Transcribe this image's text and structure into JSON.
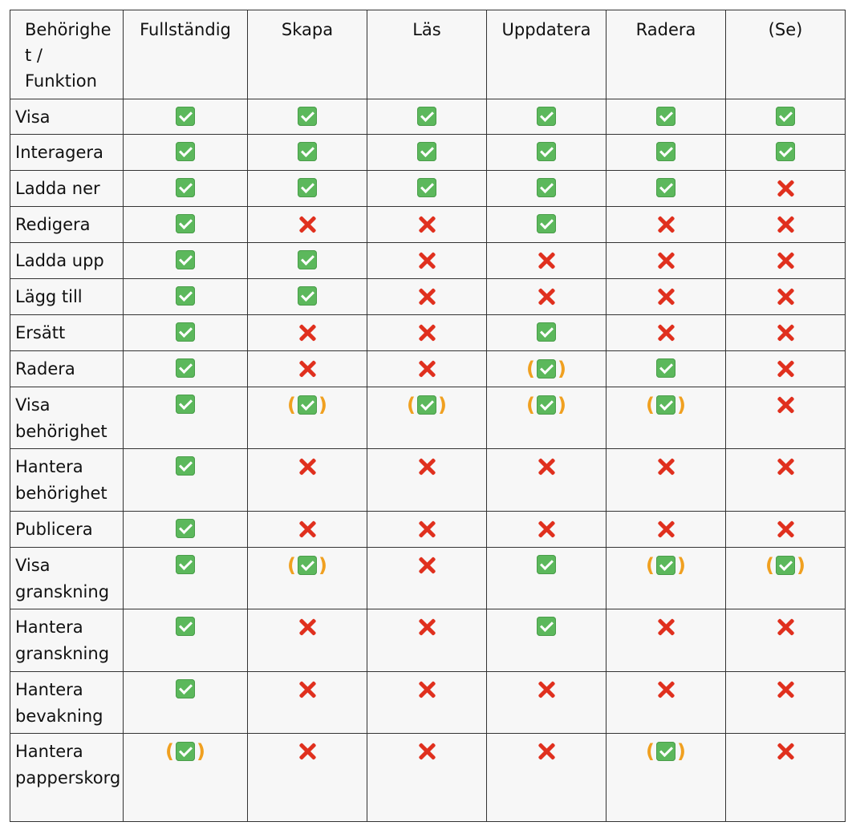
{
  "header": {
    "first_line1": "Behörighe",
    "first_line2": "t /",
    "first_line3": "Funktion",
    "columns": [
      "Fullständig",
      "Skapa",
      "Läs",
      "Uppdatera",
      "Radera",
      "(Se)"
    ]
  },
  "legend": {
    "check": "check-icon",
    "cross": "cross-icon",
    "partial": "partial-check-icon"
  },
  "colors": {
    "check": "#5cb85c",
    "cross": "#e0301e",
    "paren": "#f0a020"
  },
  "rows": [
    {
      "label": "Visa",
      "height": 44,
      "cells": [
        "check",
        "check",
        "check",
        "check",
        "check",
        "check"
      ]
    },
    {
      "label": "Interagera",
      "height": 45,
      "cells": [
        "check",
        "check",
        "check",
        "check",
        "check",
        "check"
      ]
    },
    {
      "label": "Ladda ner",
      "height": 45,
      "cells": [
        "check",
        "check",
        "check",
        "check",
        "check",
        "cross"
      ]
    },
    {
      "label": "Redigera",
      "height": 45,
      "cells": [
        "check",
        "cross",
        "cross",
        "check",
        "cross",
        "cross"
      ]
    },
    {
      "label": "Ladda upp",
      "height": 45,
      "cells": [
        "check",
        "check",
        "cross",
        "cross",
        "cross",
        "cross"
      ]
    },
    {
      "label": "Lägg till",
      "height": 45,
      "cells": [
        "check",
        "check",
        "cross",
        "cross",
        "cross",
        "cross"
      ]
    },
    {
      "label": "Ersätt",
      "height": 45,
      "cells": [
        "check",
        "cross",
        "cross",
        "check",
        "cross",
        "cross"
      ]
    },
    {
      "label": "Radera",
      "height": 45,
      "cells": [
        "check",
        "cross",
        "cross",
        "partial",
        "check",
        "cross"
      ]
    },
    {
      "label": "Visa behörighet",
      "height": 77,
      "cells": [
        "check",
        "partial",
        "partial",
        "partial",
        "partial",
        "cross"
      ]
    },
    {
      "label": "Hantera behörighet",
      "height": 78,
      "cells": [
        "check",
        "cross",
        "cross",
        "cross",
        "cross",
        "cross"
      ]
    },
    {
      "label": "Publicera",
      "height": 45,
      "cells": [
        "check",
        "cross",
        "cross",
        "cross",
        "cross",
        "cross"
      ]
    },
    {
      "label": "Visa granskning",
      "height": 77,
      "cells": [
        "check",
        "partial",
        "cross",
        "check",
        "partial",
        "partial"
      ]
    },
    {
      "label": "Hantera granskning",
      "height": 78,
      "cells": [
        "check",
        "cross",
        "cross",
        "check",
        "cross",
        "cross"
      ]
    },
    {
      "label": "Hantera bevakning",
      "height": 77,
      "cells": [
        "check",
        "cross",
        "cross",
        "cross",
        "cross",
        "cross"
      ]
    },
    {
      "label": "Hantera papperskorg",
      "height": 110,
      "cells": [
        "partial",
        "cross",
        "cross",
        "cross",
        "partial",
        "cross"
      ]
    }
  ]
}
